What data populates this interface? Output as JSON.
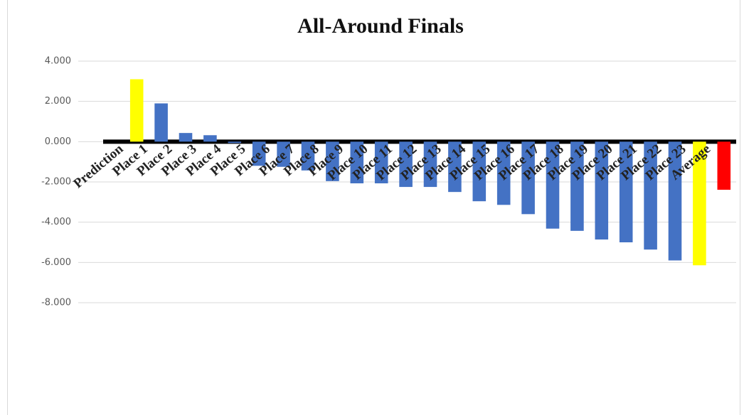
{
  "chart_data": {
    "type": "bar",
    "title": "All-Around Finals",
    "categories": [
      "Prediction",
      "Place 1",
      "Place 2",
      "Place 3",
      "Place 4",
      "Place 5",
      "Place 6",
      "Place 7",
      "Place 8",
      "Place 9",
      "Place 10",
      "Place 11",
      "Place 12",
      "Place 13",
      "Place 14",
      "Place 15",
      "Place 16",
      "Place 17",
      "Place 18",
      "Place 19",
      "Place 20",
      "Place 21",
      "Place 22",
      "Place 23",
      "Average"
    ],
    "values": [
      3.1,
      1.9,
      0.43,
      0.32,
      -0.07,
      -1.2,
      -1.25,
      -1.43,
      -1.96,
      -2.07,
      -2.07,
      -2.25,
      -2.25,
      -2.5,
      -2.96,
      -3.14,
      -3.6,
      -4.32,
      -4.43,
      -4.86,
      -5.0,
      -5.36,
      -5.9,
      -6.14,
      -2.39
    ],
    "colors": [
      "#ffff00",
      "#4472c4",
      "#4472c4",
      "#4472c4",
      "#4472c4",
      "#4472c4",
      "#4472c4",
      "#4472c4",
      "#4472c4",
      "#4472c4",
      "#4472c4",
      "#4472c4",
      "#4472c4",
      "#4472c4",
      "#4472c4",
      "#4472c4",
      "#4472c4",
      "#4472c4",
      "#4472c4",
      "#4472c4",
      "#4472c4",
      "#4472c4",
      "#4472c4",
      "#ffff00",
      "#ff0000"
    ],
    "ylim": [
      -8,
      4
    ],
    "yticks": [
      {
        "value": -8,
        "label": "-8.000"
      },
      {
        "value": -6,
        "label": "-6.000"
      },
      {
        "value": -4,
        "label": "-4.000"
      },
      {
        "value": -2,
        "label": "-2.000"
      },
      {
        "value": 0,
        "label": "0.000"
      },
      {
        "value": 2,
        "label": "2.000"
      },
      {
        "value": 4,
        "label": "4.000"
      }
    ],
    "grid": true
  }
}
